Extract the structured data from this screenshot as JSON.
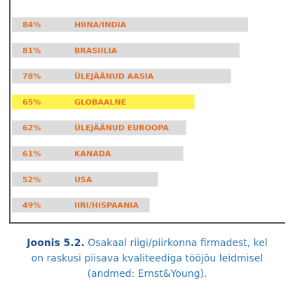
{
  "chart_data": {
    "type": "bar",
    "orientation": "horizontal",
    "title": "Joonis 5.2.",
    "subtitle": "Osakaal riigi/piirkonna firmadest, kel on raskusi piisava kvaliteediga tööjõu leidmisel (andmed: Ernst&Young).",
    "categories": [
      "HIINA/INDIA",
      "BRASIILIA",
      "ÜLEJÄÄNUD AASIA",
      "GLOBAALNE",
      "ÜLEJÄÄNUD EUROOPA",
      "KANADA",
      "USA",
      "IIRI/HISPAANIA"
    ],
    "values": [
      84,
      81,
      78,
      65,
      62,
      61,
      52,
      49
    ],
    "value_labels": [
      "84%",
      "81%",
      "78%",
      "65%",
      "62%",
      "61%",
      "52%",
      "49%"
    ],
    "colors": [
      "#dcdcdc",
      "#dcdcdc",
      "#dcdcdc",
      "#fff44f",
      "#dcdcdc",
      "#dcdcdc",
      "#dcdcdc",
      "#dcdcdc"
    ],
    "label_color": "#e5722b"
  }
}
